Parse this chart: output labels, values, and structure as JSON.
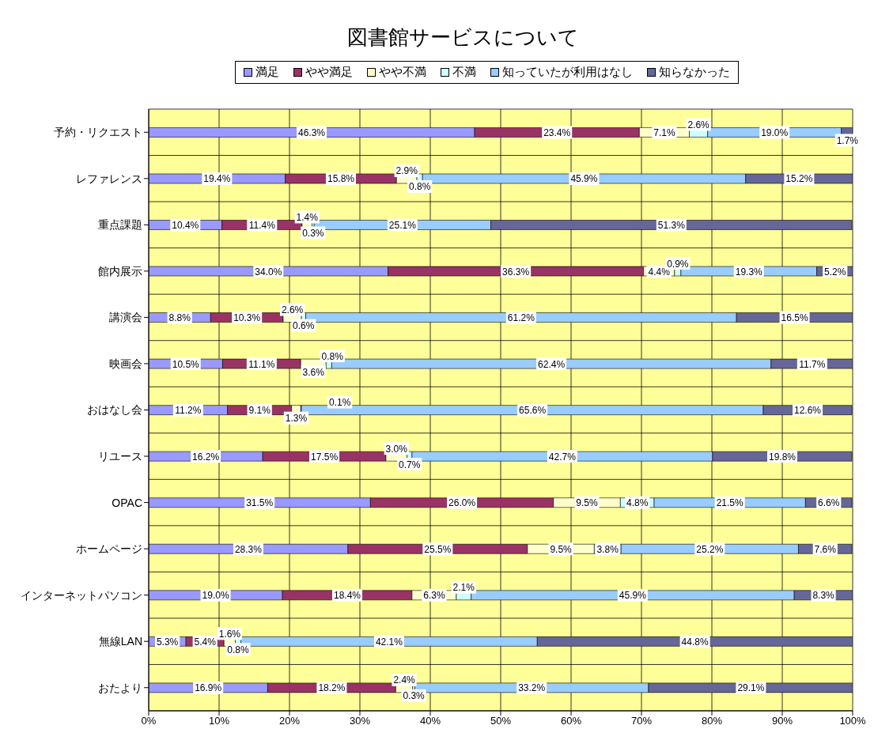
{
  "chart_data": {
    "type": "bar",
    "orientation": "horizontal",
    "stacked": true,
    "title": "図書館サービスについて",
    "categories": [
      "予約・リクエスト",
      "レファレンス",
      "重点課題",
      "館内展示",
      "講演会",
      "映画会",
      "おはなし会",
      "リユース",
      "OPAC",
      "ホームページ",
      "インターネットパソコン",
      "無線LAN",
      "おたより"
    ],
    "series": [
      {
        "name": "満足",
        "color": "#9999ff",
        "values": [
          46.3,
          19.4,
          10.4,
          34.0,
          8.8,
          10.5,
          11.2,
          16.2,
          31.5,
          28.3,
          19.0,
          5.3,
          16.9
        ],
        "value_labels": [
          "46.3%",
          "19.4%",
          "10.4%",
          "34.0%",
          "8.8%",
          "10.5%",
          "11.2%",
          "16.2%",
          "31.5%",
          "28.3%",
          "19.0%",
          "5.3%",
          "16.9%"
        ]
      },
      {
        "name": "やや満足",
        "color": "#993366",
        "values": [
          23.4,
          15.8,
          11.4,
          36.3,
          10.3,
          11.1,
          9.1,
          17.5,
          26.0,
          25.5,
          18.4,
          5.4,
          18.2
        ],
        "value_labels": [
          "23.4%",
          "15.8%",
          "11.4%",
          "36.3%",
          "10.3%",
          "11.1%",
          "9.1%",
          "17.5%",
          "26.0%",
          "25.5%",
          "18.4%",
          "5.4%",
          "18.2%"
        ]
      },
      {
        "name": "やや不満",
        "color": "#ffffcc",
        "values": [
          7.1,
          2.9,
          1.4,
          4.4,
          2.6,
          3.6,
          1.3,
          3.0,
          9.5,
          9.5,
          6.3,
          1.6,
          2.4
        ],
        "value_labels": [
          "7.1%",
          "2.9%",
          "1.4%",
          "4.4%",
          "2.6%",
          "3.6%",
          "1.3%",
          "3.0%",
          "9.5%",
          "9.5%",
          "6.3%",
          "1.6%",
          "2.4%"
        ]
      },
      {
        "name": "不満",
        "color": "#ccffff",
        "values": [
          2.6,
          0.8,
          0.3,
          0.9,
          0.6,
          0.8,
          0.1,
          0.7,
          4.8,
          3.8,
          2.1,
          0.8,
          0.3
        ],
        "value_labels": [
          "2.6%",
          "0.8%",
          "0.3%",
          "0.9%",
          "0.6%",
          "0.8%",
          "0.1%",
          "0.7%",
          "4.8%",
          "3.8%",
          "2.1%",
          "0.8%",
          "0.3%"
        ]
      },
      {
        "name": "知っていたが利用はなし",
        "color": "#99ccff",
        "values": [
          19.0,
          45.9,
          25.1,
          19.3,
          61.2,
          62.4,
          65.6,
          42.7,
          21.5,
          25.2,
          45.9,
          42.1,
          33.2
        ],
        "value_labels": [
          "19.0%",
          "45.9%",
          "25.1%",
          "19.3%",
          "61.2%",
          "62.4%",
          "65.6%",
          "42.7%",
          "21.5%",
          "25.2%",
          "45.9%",
          "42.1%",
          "33.2%"
        ]
      },
      {
        "name": "知らなかった",
        "color": "#666699",
        "values": [
          1.7,
          15.2,
          51.3,
          5.2,
          16.5,
          11.7,
          12.6,
          19.8,
          6.6,
          7.6,
          8.3,
          44.8,
          29.1
        ],
        "value_labels": [
          "1.7%",
          "15.2%",
          "51.3%",
          "5.2%",
          "16.5%",
          "11.7%",
          "12.6%",
          "19.8%",
          "6.6%",
          "7.6%",
          "8.3%",
          "44.8%",
          "29.1%"
        ]
      }
    ],
    "xlim": [
      0,
      100
    ],
    "xticks": [
      {
        "value": 0,
        "label": "0%"
      },
      {
        "value": 10,
        "label": "10%"
      },
      {
        "value": 20,
        "label": "20%"
      },
      {
        "value": 30,
        "label": "30%"
      },
      {
        "value": 40,
        "label": "40%"
      },
      {
        "value": 50,
        "label": "50%"
      },
      {
        "value": 60,
        "label": "60%"
      },
      {
        "value": 70,
        "label": "70%"
      },
      {
        "value": 80,
        "label": "80%"
      },
      {
        "value": 90,
        "label": "90%"
      },
      {
        "value": 100,
        "label": "100%"
      }
    ],
    "grid": true,
    "legend": "top"
  }
}
